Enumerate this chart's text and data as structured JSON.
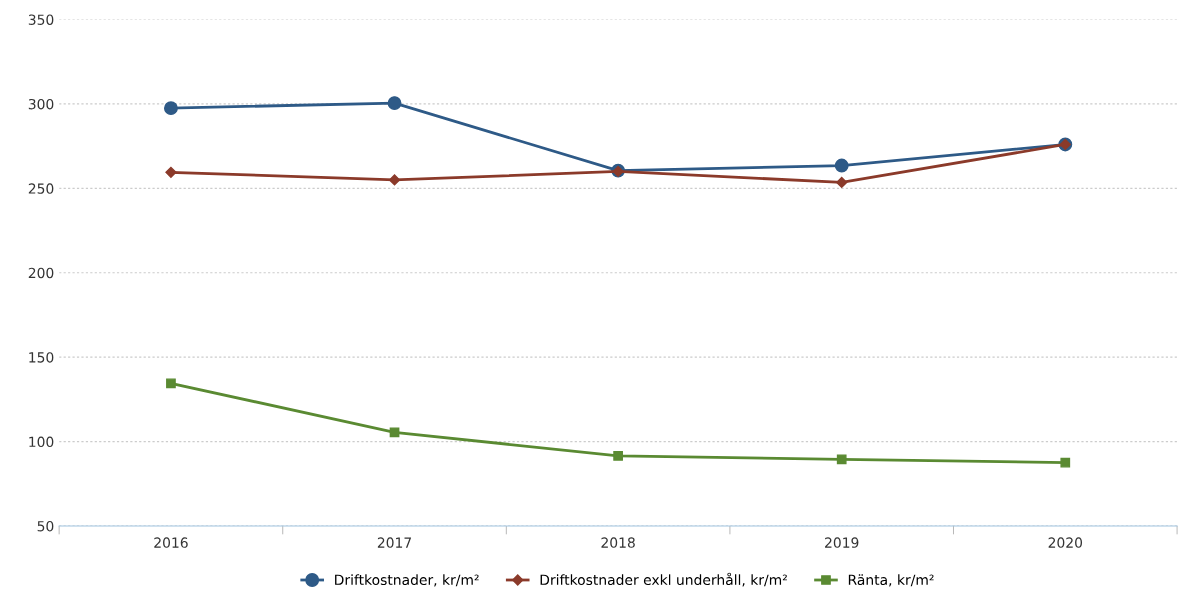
{
  "chart_data": {
    "type": "line",
    "categories": [
      "2016",
      "2017",
      "2018",
      "2019",
      "2020"
    ],
    "series": [
      {
        "name": "Driftkostnader, kr/m²",
        "color": "#2e5a87",
        "marker": "circle",
        "values": [
          297.5,
          300.5,
          260.5,
          263.5,
          276
        ]
      },
      {
        "name": "Driftkostnader exkl underhåll, kr/m²",
        "color": "#8b3a2a",
        "marker": "diamond",
        "values": [
          259.5,
          255,
          260,
          253.5,
          276
        ]
      },
      {
        "name": "Ränta, kr/m²",
        "color": "#5a8a32",
        "marker": "square",
        "values": [
          134.5,
          105.5,
          91.5,
          89.5,
          87.5
        ]
      }
    ],
    "ylim": [
      50,
      350
    ],
    "yticks": [
      50,
      100,
      150,
      200,
      250,
      300,
      350
    ],
    "grid": "y",
    "legend": "bottom",
    "line_style": "solid"
  }
}
